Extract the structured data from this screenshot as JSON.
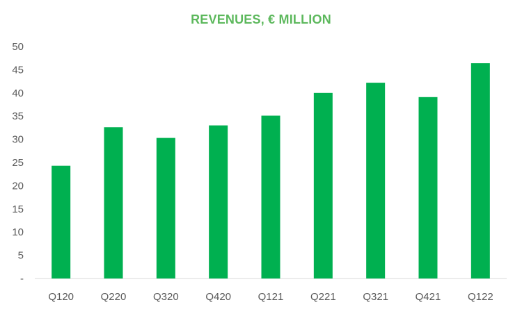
{
  "chart_data": {
    "type": "bar",
    "title": "REVENUES, € MILLION",
    "categories": [
      "Q120",
      "Q220",
      "Q320",
      "Q420",
      "Q121",
      "Q221",
      "Q321",
      "Q421",
      "Q122"
    ],
    "values": [
      24.3,
      32.6,
      30.3,
      33.0,
      35.1,
      40.0,
      42.2,
      39.1,
      46.4
    ],
    "y_ticks": [
      "-",
      "5",
      "10",
      "15",
      "20",
      "25",
      "30",
      "35",
      "40",
      "45",
      "50"
    ],
    "ylim": [
      0,
      50
    ],
    "xlabel": "",
    "ylabel": "",
    "grid": false,
    "legend": "none"
  },
  "colors": {
    "bar": "#00b050",
    "title": "#5cb85c",
    "axis": "#d9d9d9",
    "tick_text": "#595959"
  }
}
